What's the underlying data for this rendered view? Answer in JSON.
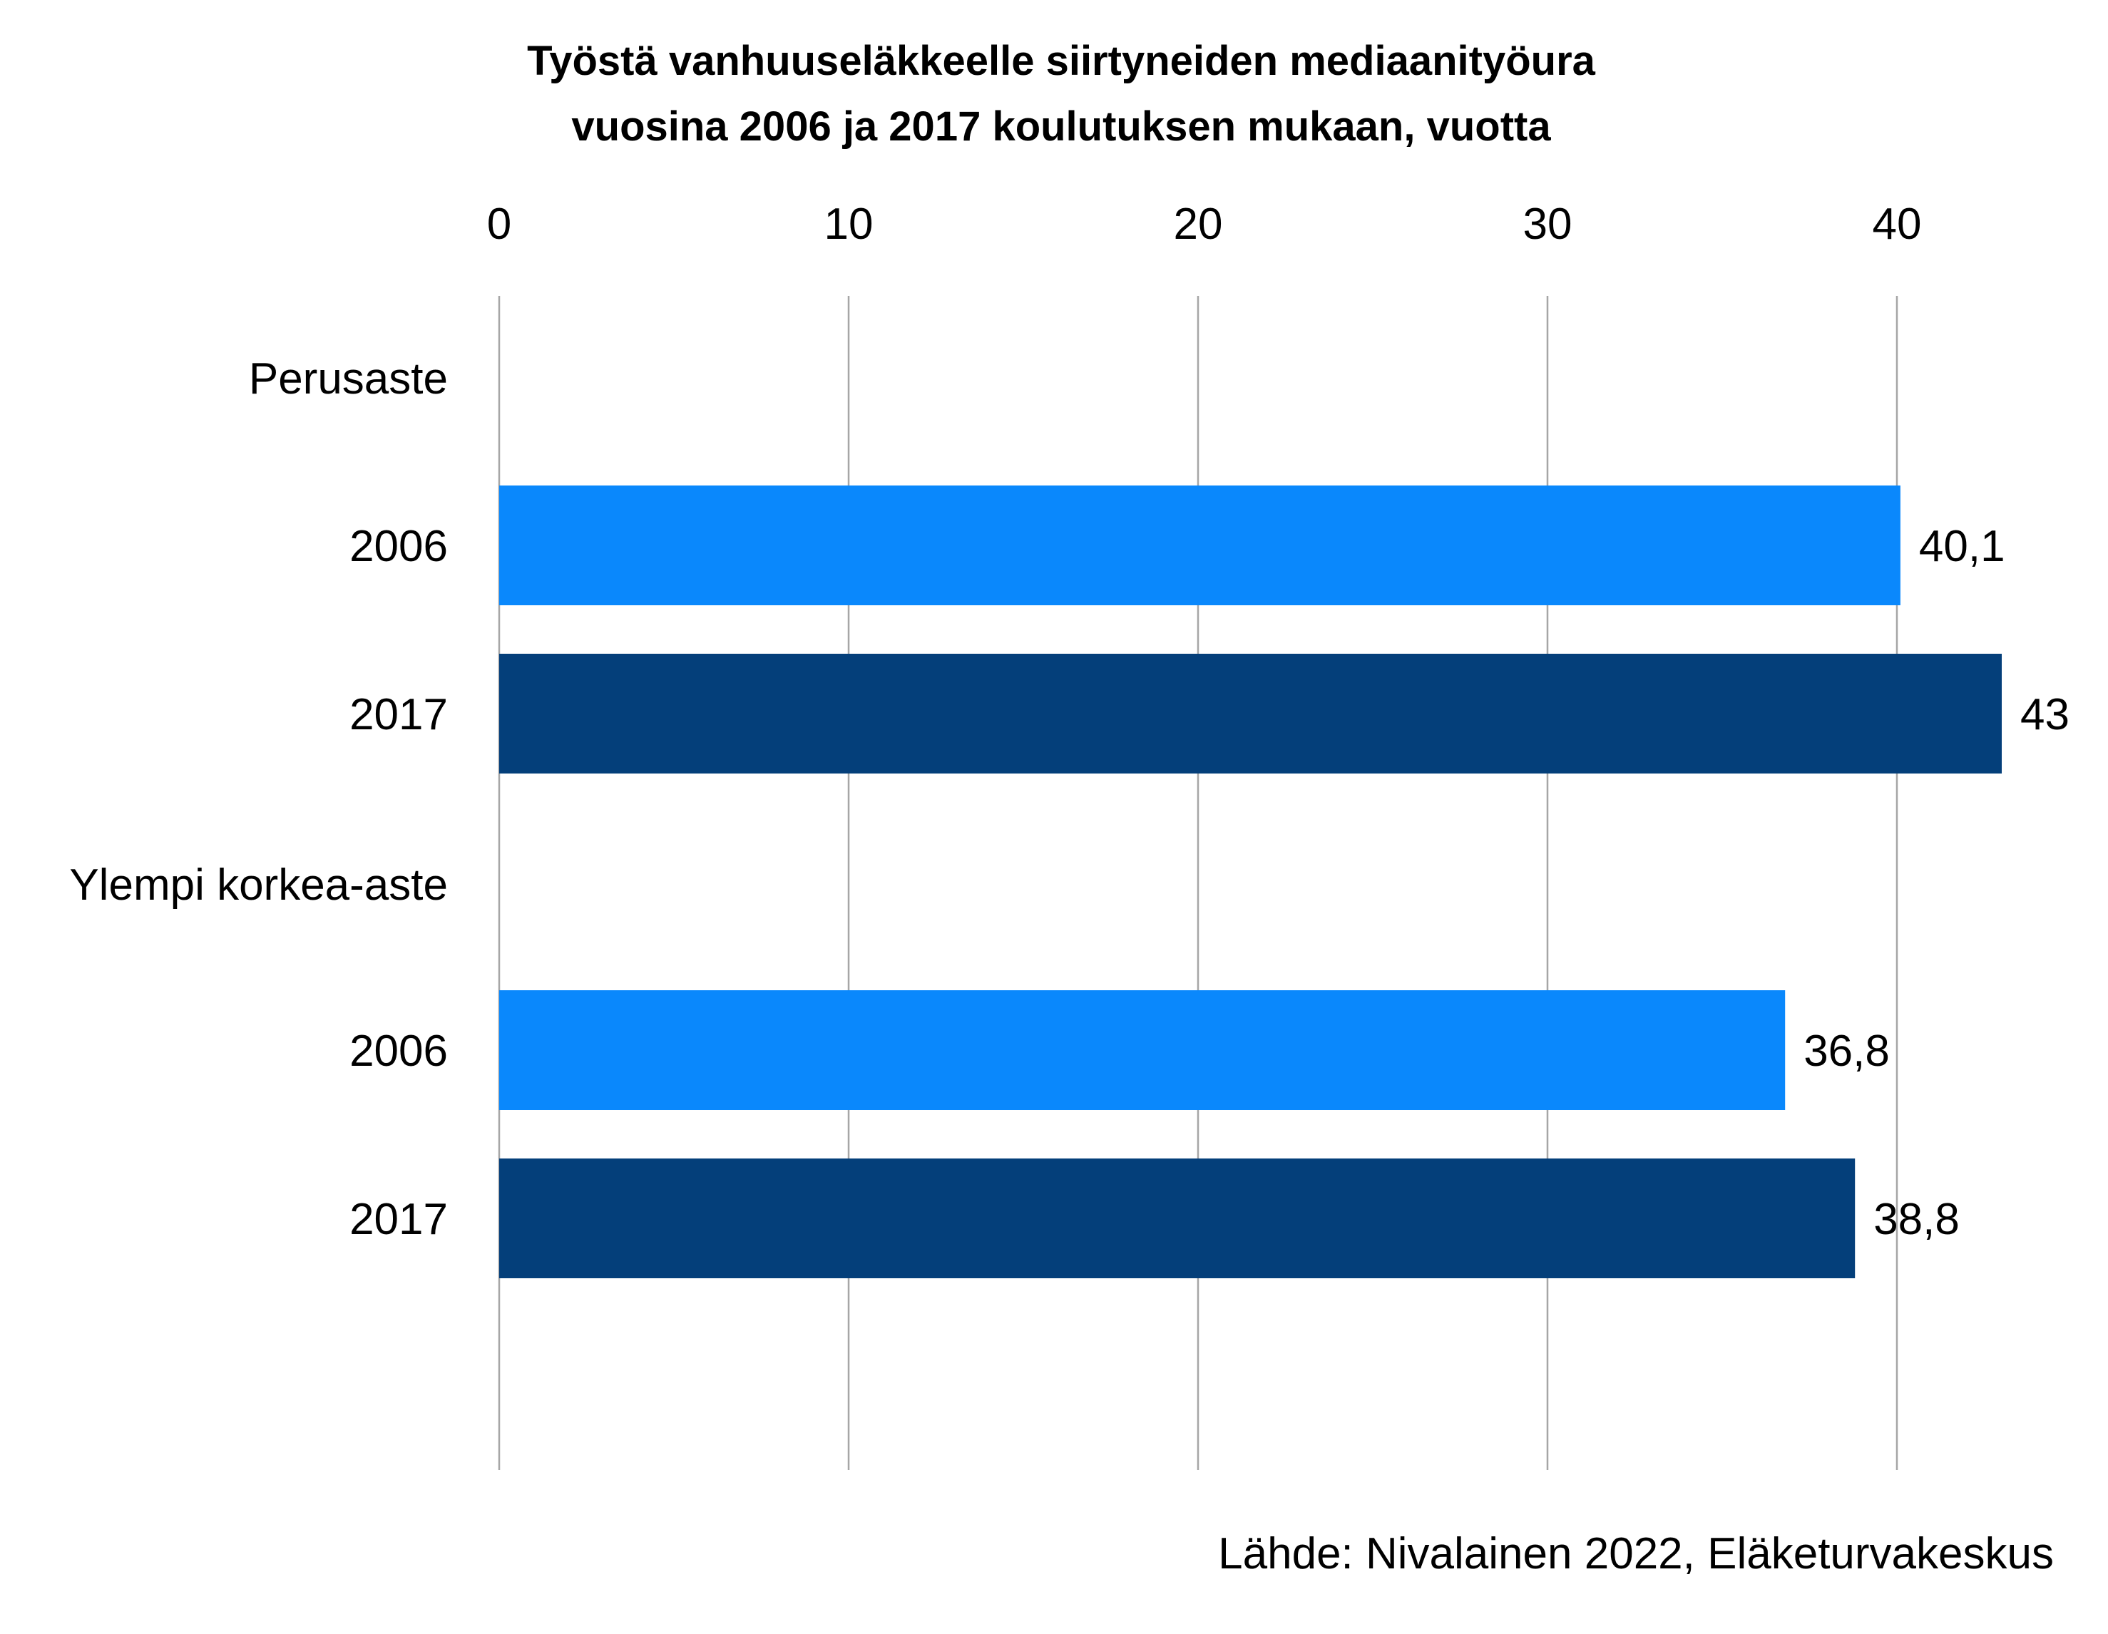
{
  "chart_data": {
    "type": "bar",
    "orientation": "horizontal",
    "title_lines": [
      "Työstä vanhuuseläkkeelle siirtyneiden mediaanityöura",
      "vuosina 2006 ja 2017 koulutuksen mukaan, vuotta"
    ],
    "groups": [
      {
        "label": "Perusaste",
        "bars": [
          {
            "category": "2006",
            "value": 40.1,
            "value_label": "40,1",
            "color": "#0a88fc"
          },
          {
            "category": "2017",
            "value": 43,
            "value_label": "43",
            "color": "#043f7a"
          }
        ]
      },
      {
        "label": "Ylempi korkea-aste",
        "bars": [
          {
            "category": "2006",
            "value": 36.8,
            "value_label": "36,8",
            "color": "#0a88fc"
          },
          {
            "category": "2017",
            "value": 38.8,
            "value_label": "38,8",
            "color": "#043f7a"
          }
        ]
      }
    ],
    "x_ticks": [
      "0",
      "10",
      "20",
      "30",
      "40"
    ],
    "xlim": [
      0,
      45
    ],
    "x_axis_position": "top",
    "grid": true,
    "legend": false,
    "source": "Lähde: Nivalainen 2022, Eläketurvakeskus"
  }
}
